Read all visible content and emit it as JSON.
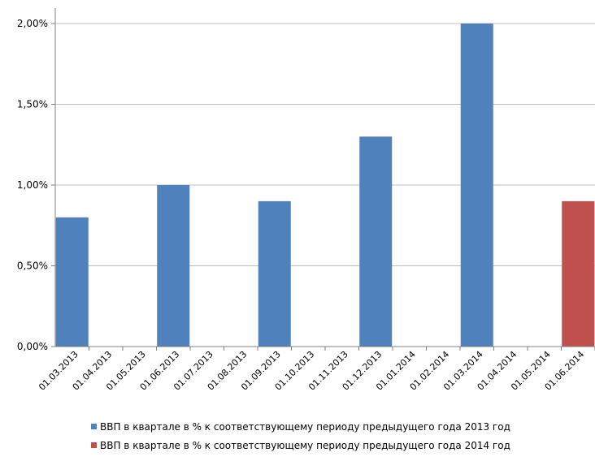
{
  "chart_data": {
    "type": "bar",
    "categories": [
      "01.03.2013",
      "01.04.2013",
      "01.05.2013",
      "01.06.2013",
      "01.07.2013",
      "01.08.2013",
      "01.09.2013",
      "01.10.2013",
      "01.11.2013",
      "01.12.2013",
      "01.01.2014",
      "01.02.2014",
      "01.03.2014",
      "01.04.2014",
      "01.05.2014",
      "01.06.2014"
    ],
    "series": [
      {
        "name": "ВВП в квартале в % к соответствующему периоду предыдущего года 2013 год",
        "color": "#4F81BD",
        "values": [
          0.8,
          null,
          null,
          1.0,
          null,
          null,
          0.9,
          null,
          null,
          1.3,
          null,
          null,
          2.0,
          null,
          null,
          null
        ]
      },
      {
        "name": "ВВП в квартале в % к соответствующему периоду предыдущего года 2014 год",
        "color": "#C0504D",
        "values": [
          null,
          null,
          null,
          null,
          null,
          null,
          null,
          null,
          null,
          null,
          null,
          null,
          null,
          null,
          null,
          0.9
        ]
      }
    ],
    "ylim": [
      0,
      2.0
    ],
    "yticks": [
      0,
      0.5,
      1.0,
      1.5,
      2.0
    ],
    "ytick_labels": [
      "0,00%",
      "0,50%",
      "1,00%",
      "1,50%",
      "2,00%"
    ],
    "grid": true,
    "legend_position": "bottom"
  }
}
